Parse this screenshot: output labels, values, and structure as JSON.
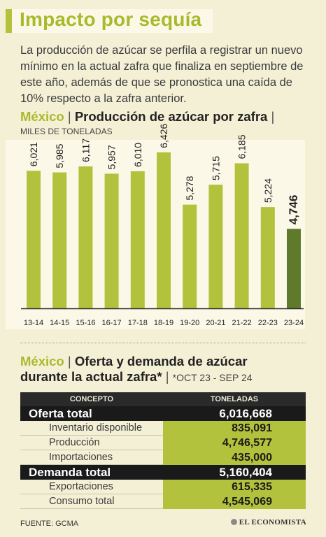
{
  "header": {
    "title": "Impacto por sequía",
    "intro": "La producción de azúcar se perfila a registrar un nuevo mínimo en la actual zafra que finaliza en septiembre de este año, además de que se pronostica una caída de 10% respecto a la zafra anterior."
  },
  "chart_section": {
    "country": "México",
    "sep": "|",
    "title": "Producción de azúcar por zafra",
    "trail": "|",
    "units": "MILES DE TONELADAS"
  },
  "chart_data": {
    "type": "bar",
    "categories": [
      "13-14",
      "14-15",
      "15-16",
      "16-17",
      "17-18",
      "18-19",
      "19-20",
      "20-21",
      "21-22",
      "22-23",
      "23-24"
    ],
    "values": [
      6021,
      5985,
      6117,
      5957,
      6010,
      6426,
      5278,
      5715,
      6185,
      5224,
      4746
    ],
    "value_labels": [
      "6,021",
      "5,985",
      "6,117",
      "5,957",
      "6,010",
      "6,426",
      "5,278",
      "5,715",
      "6,185",
      "5,224",
      "4,746"
    ],
    "title": "Producción de azúcar por zafra",
    "ylabel": "MILES DE TONELADAS",
    "ylim": [
      3000,
      6700
    ],
    "highlight_index": 10,
    "colors": {
      "bar": "#b2c23c",
      "highlight": "#5f7a2a",
      "axis": "#2b2b2b"
    }
  },
  "table_section": {
    "country": "México",
    "sep": "|",
    "title_line1": "Oferta y demanda de azúcar",
    "title_line2": "durante la actual zafra*",
    "sep2": "|",
    "period": "*OCT 23 - SEP 24",
    "headers": {
      "concept": "CONCEPTO",
      "tons": "TONELADAS"
    },
    "rows": [
      {
        "label": "Oferta total",
        "value": "6,016,668",
        "kind": "main"
      },
      {
        "label": "Inventario disponible",
        "value": "835,091",
        "kind": "sub"
      },
      {
        "label": "Producción",
        "value": "4,746,577",
        "kind": "sub"
      },
      {
        "label": "Importaciones",
        "value": "435,000",
        "kind": "sub"
      },
      {
        "label": "Demanda total",
        "value": "5,160,404",
        "kind": "main"
      },
      {
        "label": "Exportaciones",
        "value": "615,335",
        "kind": "sub"
      },
      {
        "label": "Consumo total",
        "value": "4,545,069",
        "kind": "sub"
      }
    ]
  },
  "footer": {
    "source": "FUENTE: GCMA",
    "brand": "EL ECONOMISTA"
  }
}
